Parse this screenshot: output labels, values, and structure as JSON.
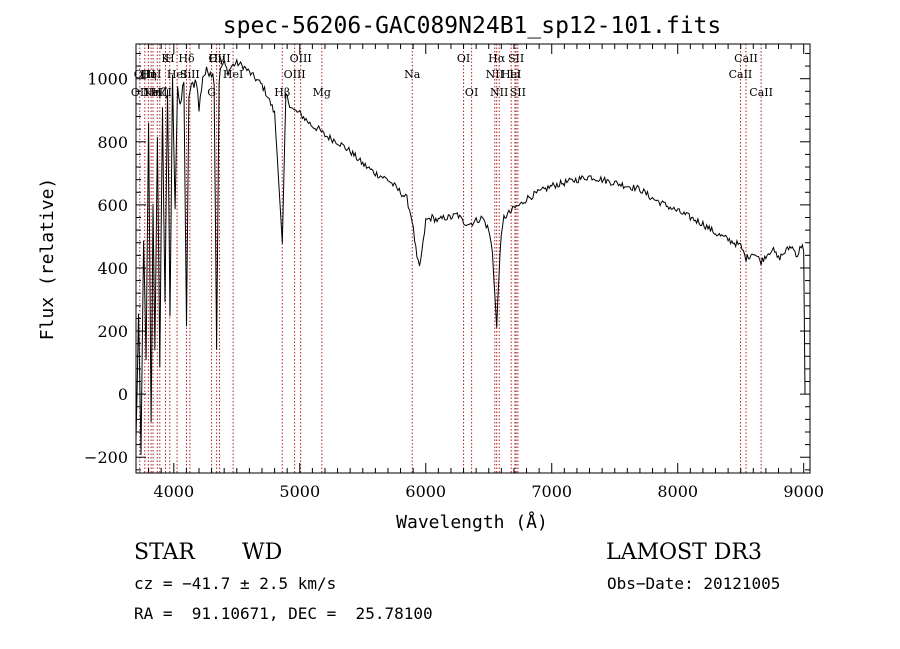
{
  "chart_data": {
    "type": "line",
    "title": "spec-56206-GAC089N24B1_sp12-101.fits",
    "xlabel": "Wavelength (Å)",
    "ylabel": "Flux (relative)",
    "xlim": [
      3700,
      9050
    ],
    "ylim": [
      -250,
      1110
    ],
    "xticks": [
      4000,
      5000,
      6000,
      7000,
      8000,
      9000
    ],
    "yticks": [
      -200,
      0,
      200,
      400,
      600,
      800,
      1000
    ],
    "xtick_labels": [
      "4000",
      "5000",
      "6000",
      "7000",
      "8000",
      "9000"
    ],
    "ytick_labels": [
      "−200",
      "0",
      "200",
      "400",
      "600",
      "800",
      "1000"
    ],
    "grid": false,
    "line_color": "#000000",
    "marker_color": "#b22222",
    "spectrum": {
      "x": [
        3700,
        3720,
        3740,
        3760,
        3780,
        3800,
        3820,
        3835,
        3850,
        3870,
        3889,
        3910,
        3930,
        3950,
        3970,
        3990,
        4010,
        4030,
        4050,
        4080,
        4101,
        4120,
        4150,
        4180,
        4200,
        4230,
        4260,
        4290,
        4320,
        4340,
        4360,
        4380,
        4400,
        4430,
        4460,
        4500,
        4550,
        4600,
        4650,
        4700,
        4750,
        4800,
        4830,
        4861,
        4890,
        4920,
        4950,
        5000,
        5050,
        5100,
        5150,
        5200,
        5300,
        5400,
        5500,
        5600,
        5700,
        5800,
        5850,
        5893,
        5930,
        5950,
        5980,
        6000,
        6050,
        6100,
        6150,
        6200,
        6250,
        6300,
        6350,
        6400,
        6450,
        6500,
        6530,
        6563,
        6590,
        6620,
        6680,
        6700,
        6750,
        6800,
        6900,
        7000,
        7100,
        7200,
        7300,
        7400,
        7500,
        7600,
        7700,
        7800,
        7900,
        8000,
        8100,
        8200,
        8300,
        8400,
        8500,
        8542,
        8600,
        8662,
        8700,
        8750,
        8800,
        8850,
        8900,
        8950,
        8990,
        9000,
        9010
      ],
      "y": [
        -150,
        250,
        -200,
        500,
        100,
        850,
        -100,
        600,
        150,
        800,
        100,
        900,
        300,
        950,
        250,
        1000,
        600,
        980,
        900,
        1000,
        200,
        950,
        980,
        1000,
        900,
        1010,
        1020,
        1030,
        1000,
        150,
        1000,
        1040,
        1050,
        1020,
        1040,
        1050,
        1040,
        1020,
        1000,
        980,
        940,
        890,
        700,
        470,
        950,
        920,
        900,
        890,
        870,
        850,
        840,
        820,
        800,
        770,
        730,
        700,
        680,
        640,
        620,
        550,
        430,
        400,
        480,
        550,
        560,
        550,
        560,
        560,
        570,
        545,
        540,
        550,
        560,
        520,
        450,
        210,
        460,
        560,
        580,
        590,
        600,
        620,
        640,
        660,
        670,
        680,
        690,
        680,
        670,
        660,
        650,
        620,
        600,
        580,
        560,
        540,
        510,
        490,
        470,
        430,
        450,
        420,
        440,
        460,
        430,
        450,
        470,
        440,
        480,
        450,
        0
      ],
      "decimate": 10
    },
    "lines": [
      {
        "x": 3730,
        "row": 3,
        "label": "OII"
      },
      {
        "x": 3770,
        "row": 2,
        "label": "OIII"
      },
      {
        "x": 3798,
        "row": 2,
        "label": "Hη"
      },
      {
        "x": 3820,
        "row": 2,
        "label": "HeI"
      },
      {
        "x": 3835,
        "row": 3,
        "label": "Hη"
      },
      {
        "x": 3869,
        "row": 3,
        "label": "NeIII"
      },
      {
        "x": 3889,
        "row": 3,
        "label": "Hζ"
      },
      {
        "x": 3934,
        "row": 1,
        "label": "K"
      },
      {
        "x": 3968,
        "row": 1,
        "label": "H"
      },
      {
        "x": 4026,
        "row": 2,
        "label": "HeI"
      },
      {
        "x": 4101,
        "row": 1,
        "label": "Hδ"
      },
      {
        "x": 4128,
        "row": 2,
        "label": "SiII"
      },
      {
        "x": 4300,
        "row": 3,
        "label": "G"
      },
      {
        "x": 4340,
        "row": 1,
        "label": "Hγ"
      },
      {
        "x": 4363,
        "row": 1,
        "label": "OIII"
      },
      {
        "x": 4471,
        "row": 2,
        "label": "HeI"
      },
      {
        "x": 4861,
        "row": 3,
        "label": "Hβ"
      },
      {
        "x": 4959,
        "row": 2,
        "label": "OIII"
      },
      {
        "x": 5007,
        "row": 1,
        "label": "OIII"
      },
      {
        "x": 5175,
        "row": 3,
        "label": "Mg"
      },
      {
        "x": 5893,
        "row": 2,
        "label": "Na"
      },
      {
        "x": 6300,
        "row": 1,
        "label": "OI"
      },
      {
        "x": 6364,
        "row": 3,
        "label": "OI"
      },
      {
        "x": 6548,
        "row": 2,
        "label": "NII"
      },
      {
        "x": 6563,
        "row": 1,
        "label": "Hα"
      },
      {
        "x": 6583,
        "row": 3,
        "label": "NII"
      },
      {
        "x": 6678,
        "row": 2,
        "label": "HeI"
      },
      {
        "x": 6708,
        "row": 2,
        "label": "Li"
      },
      {
        "x": 6717,
        "row": 1,
        "label": "SII"
      },
      {
        "x": 6731,
        "row": 3,
        "label": "SII"
      },
      {
        "x": 8498,
        "row": 2,
        "label": "CaII"
      },
      {
        "x": 8542,
        "row": 1,
        "label": "CaII"
      },
      {
        "x": 8662,
        "row": 3,
        "label": "CaII"
      }
    ]
  },
  "info": {
    "object_class": "STAR",
    "subclass": "WD",
    "survey": "LAMOST DR3",
    "velocity": "cz = −41.7 ± 2.5 km/s",
    "obs_date": "Obs−Date: 20121005",
    "coords": "RA =  91.10671, DEC =  25.78100"
  }
}
